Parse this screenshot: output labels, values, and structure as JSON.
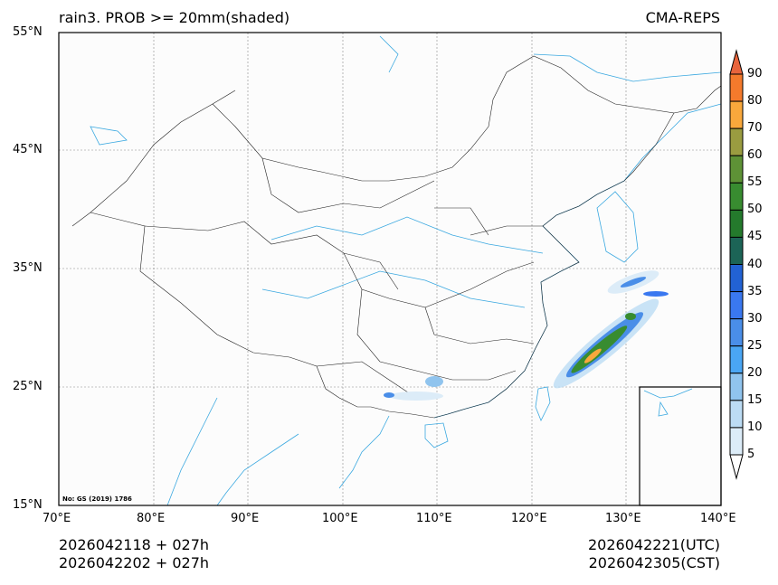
{
  "header": {
    "left_title": "rain3. PROB >= 20mm(shaded)",
    "right_title": "CMA-REPS"
  },
  "axes": {
    "lat_ticks": [
      "55°N",
      "45°N",
      "35°N",
      "25°N",
      "15°N"
    ],
    "lon_ticks": [
      "70°E",
      "80°E",
      "90°E",
      "100°E",
      "110°E",
      "120°E",
      "130°E",
      "140°E"
    ]
  },
  "map": {
    "attribution": "No: GS (2019) 1786"
  },
  "colorbar": {
    "labels": [
      "90",
      "80",
      "70",
      "60",
      "55",
      "50",
      "45",
      "40",
      "35",
      "30",
      "25",
      "20",
      "15",
      "10",
      "5"
    ],
    "colors": [
      "#e8643c",
      "#f47a2c",
      "#f9a83c",
      "#9a9c40",
      "#5e9236",
      "#388c30",
      "#247a2c",
      "#1c6456",
      "#2262d4",
      "#3a78f0",
      "#4a8ee8",
      "#4aa6f4",
      "#90c4ee",
      "#bcdcf4",
      "#dcecf8"
    ]
  },
  "footer": {
    "init_utc": "2026042118  +  027h",
    "init_cst": "2026042202  +  027h",
    "valid_utc": "2026042221(UTC)",
    "valid_cst": "2026042305(CST)"
  }
}
